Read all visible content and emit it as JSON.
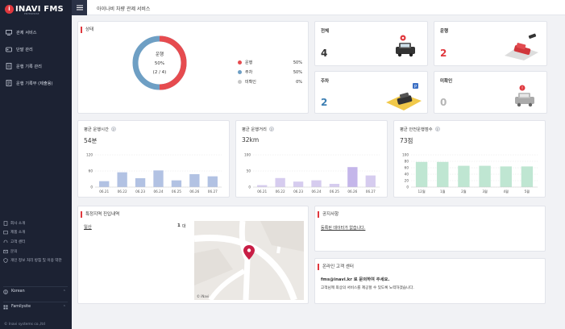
{
  "brand": {
    "logo_letter": "i",
    "logo_text": "INAVI FMS",
    "logo_sub": "ENTERPRISE"
  },
  "top": {
    "title": "아이나비 차량 관제 서비스"
  },
  "nav": [
    {
      "label": "관제 서비스",
      "icon": "monitor-icon"
    },
    {
      "label": "단말 관리",
      "icon": "device-icon"
    },
    {
      "label": "운행 기록 관리",
      "icon": "document-icon"
    },
    {
      "label": "운행 기록부 (제출용)",
      "icon": "report-icon"
    }
  ],
  "footer_links": [
    {
      "label": "회사 소개",
      "icon": "building-icon"
    },
    {
      "label": "제품 소개",
      "icon": "product-icon"
    },
    {
      "label": "고객 센터",
      "icon": "headset-icon"
    },
    {
      "label": "문의",
      "icon": "mail-icon"
    },
    {
      "label": "개인 정보 처리 방침 및 이용 약관",
      "icon": "shield-icon"
    }
  ],
  "language": {
    "label": "Korean",
    "icon": "globe-icon"
  },
  "family_site": {
    "label": "Familysite",
    "icon": "grid-icon"
  },
  "copyright": "© Inavi systems co.,ltd",
  "status": {
    "title": "상태",
    "center_label": "운행",
    "center_pct": "50%",
    "center_count": "(2 / 4)",
    "accent": "#e64b4f",
    "second": "#6e9fc4",
    "legend": [
      {
        "label": "운행",
        "pct": "50%",
        "color": "#e64b4f"
      },
      {
        "label": "주차",
        "pct": "50%",
        "color": "#6e9fc4"
      },
      {
        "label": "미확인",
        "pct": "0%",
        "color": "#c8c8c8"
      }
    ]
  },
  "stats": [
    {
      "label": "전체",
      "value": "4",
      "color": "#333333"
    },
    {
      "label": "운행",
      "value": "2",
      "color": "#e0383e"
    },
    {
      "label": "주차",
      "value": "2",
      "color": "#3d7fb3"
    },
    {
      "label": "미확인",
      "value": "0",
      "color": "#b5b5b5"
    }
  ],
  "chart_data": [
    {
      "type": "bar",
      "title": "평균 운행시간",
      "value": "54분",
      "categories": [
        "06.21",
        "06.22",
        "06.23",
        "06.24",
        "06.25",
        "06.26",
        "06.27"
      ],
      "values": [
        22,
        55,
        33,
        62,
        25,
        48,
        40
      ],
      "ylim": [
        0,
        120
      ],
      "yticks": [
        0,
        60,
        120
      ],
      "color": "#b2c2e3",
      "highlight": []
    },
    {
      "type": "bar",
      "title": "평균 운행거리",
      "value": "32km",
      "categories": [
        "06.21",
        "06.22",
        "06.23",
        "06.24",
        "06.25",
        "06.26",
        "06.27"
      ],
      "values": [
        6,
        28,
        17,
        21,
        10,
        62,
        36
      ],
      "ylim": [
        0,
        100
      ],
      "yticks": [
        0,
        50,
        100
      ],
      "color": "#d6ccef",
      "highlight": [
        5
      ]
    },
    {
      "type": "bar",
      "title": "평균 안전운행점수",
      "value": "73점",
      "categories": [
        "12월",
        "1월",
        "2월",
        "3월",
        "4월",
        "5월"
      ],
      "values": [
        78,
        78,
        66,
        66,
        64,
        64
      ],
      "ylim": [
        0,
        100
      ],
      "yticks": [
        0,
        20,
        40,
        60,
        80,
        100
      ],
      "color": "#bfe6d2",
      "highlight": []
    }
  ],
  "zone": {
    "title": "특정지역 진입내역",
    "region": "일산",
    "count": "1",
    "unit": "대",
    "map_credit": "© iNavi"
  },
  "notice": {
    "title": "공지사항",
    "text": "등록된 데이터가 없습니다."
  },
  "support": {
    "title": "온라인 고객 센터",
    "email_line": "fms@inavi.kr 로 문의하여 주세요.",
    "desc": "고객님께 최상의 서비스를 제공할 수 있도록 노력하겠습니다."
  }
}
